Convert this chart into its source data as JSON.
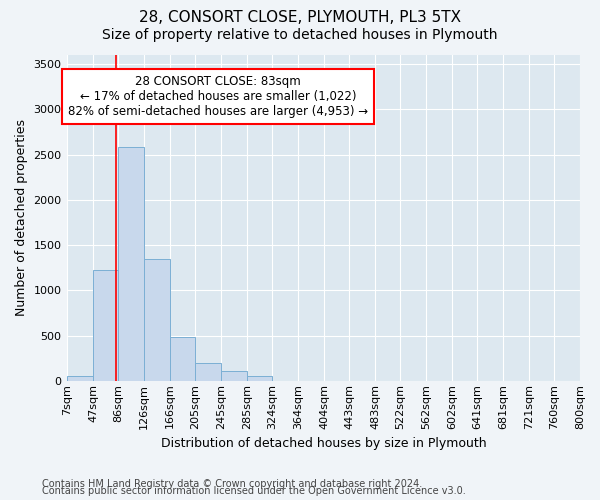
{
  "title1": "28, CONSORT CLOSE, PLYMOUTH, PL3 5TX",
  "title2": "Size of property relative to detached houses in Plymouth",
  "xlabel": "Distribution of detached houses by size in Plymouth",
  "ylabel": "Number of detached properties",
  "bin_edges": [
    7,
    47,
    86,
    126,
    166,
    205,
    245,
    285,
    324,
    364,
    404,
    443,
    483,
    522,
    562,
    602,
    641,
    681,
    721,
    760,
    800
  ],
  "bin_labels": [
    "7sqm",
    "47sqm",
    "86sqm",
    "126sqm",
    "166sqm",
    "205sqm",
    "245sqm",
    "285sqm",
    "324sqm",
    "364sqm",
    "404sqm",
    "443sqm",
    "483sqm",
    "522sqm",
    "562sqm",
    "602sqm",
    "641sqm",
    "681sqm",
    "721sqm",
    "760sqm",
    "800sqm"
  ],
  "bar_heights": [
    50,
    1220,
    2580,
    1350,
    490,
    195,
    110,
    50,
    0,
    0,
    0,
    0,
    0,
    0,
    0,
    0,
    0,
    0,
    0,
    0
  ],
  "bar_color": "#c8d8ec",
  "bar_edge_color": "#7bafd4",
  "property_line_x": 83,
  "annotation_text": "28 CONSORT CLOSE: 83sqm\n← 17% of detached houses are smaller (1,022)\n82% of semi-detached houses are larger (4,953) →",
  "annotation_box_color": "white",
  "annotation_box_edge": "red",
  "vline_color": "red",
  "ylim": [
    0,
    3600
  ],
  "yticks": [
    0,
    500,
    1000,
    1500,
    2000,
    2500,
    3000,
    3500
  ],
  "footer1": "Contains HM Land Registry data © Crown copyright and database right 2024.",
  "footer2": "Contains public sector information licensed under the Open Government Licence v3.0.",
  "fig_background_color": "#f0f4f8",
  "plot_background_color": "#dde8f0",
  "grid_color": "white",
  "title1_fontsize": 11,
  "title2_fontsize": 10,
  "label_fontsize": 9,
  "tick_fontsize": 8,
  "footer_fontsize": 7,
  "annotation_fontsize": 8.5
}
